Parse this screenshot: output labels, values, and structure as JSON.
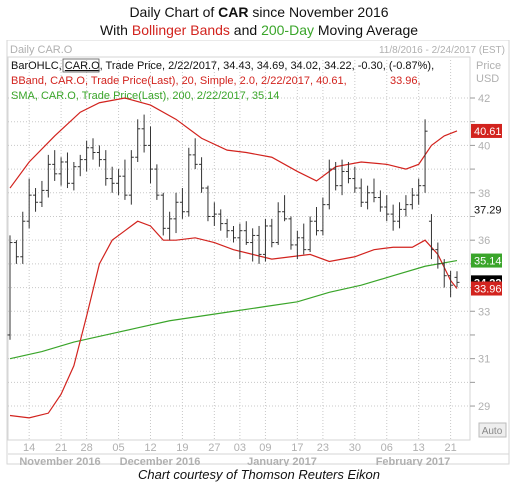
{
  "header": {
    "line1_prefix": "Daily Chart of ",
    "line1_ticker": "CAR",
    "line1_suffix": " since November 2016",
    "line2_prefix": "With ",
    "line2_bb": "Bollinger Bands",
    "line2_and": " and ",
    "line2_sma": "200-Day",
    "line2_suffix": " Moving Average"
  },
  "footer": {
    "credit": "Chart courtesy of Thomson Reuters Eikon"
  },
  "chart_data": {
    "type": "ohlc",
    "title": "Daily CAR.O",
    "date_range": "11/8/2016 - 2/24/2017 (EST)",
    "currency_label": "Price",
    "currency": "USD",
    "ylim": [
      28.2,
      43.0
    ],
    "y_ticks": [
      29,
      30,
      31,
      32,
      33,
      34,
      35,
      36,
      37,
      38,
      39,
      40,
      41,
      42
    ],
    "y_tick_labels": [
      "29",
      "31",
      "33",
      "36",
      "38",
      "40",
      "42"
    ],
    "y_tick_label_values": [
      29,
      31,
      33,
      36,
      38,
      40,
      42
    ],
    "x_days": [
      "14",
      "21",
      "28",
      "05",
      "12",
      "19",
      "27",
      "03",
      "09",
      "17",
      "23",
      "30",
      "06",
      "13",
      "21"
    ],
    "x_months": [
      "November 2016",
      "December 2016",
      "January 2017",
      "February 2017"
    ],
    "auto_label": "Auto",
    "legend": {
      "ohlc": {
        "prefix": "BarOHLC, ",
        "ric": "CAR.O",
        "text": ", Trade Price, 2/22/2017, 34.43, 34.69, 34.02, 34.22, -0.30, (-0.87%),",
        "color": "#111111"
      },
      "bband": {
        "text": "BBand, CAR.O, Trade Price(Last),  20, Simple, 2.0, 2/22/2017, 40.61,",
        "value2": "33.96,",
        "color": "#d2231e"
      },
      "sma": {
        "text": "SMA, CAR.O, Trade Price(Last),  200, 2/22/2017, 35.14",
        "color": "#3aa52a"
      }
    },
    "price_tags": [
      {
        "label": "40.61",
        "value": 40.61,
        "bg": "#d2231e",
        "fg": "#ffffff",
        "bold": false
      },
      {
        "label": "37.29",
        "value": 37.29,
        "bg": "none",
        "fg": "#111111",
        "bold": false
      },
      {
        "label": "35.14",
        "value": 35.14,
        "bg": "#3aa52a",
        "fg": "#ffffff",
        "bold": false
      },
      {
        "label": "34.22",
        "value": 34.22,
        "bg": "#000000",
        "fg": "#ffffff",
        "bold": true
      },
      {
        "label": "33.96",
        "value": 33.96,
        "bg": "#d2231e",
        "fg": "#ffffff",
        "bold": false
      }
    ],
    "dates": [
      "11/9",
      "11/10",
      "11/11",
      "11/14",
      "11/15",
      "11/16",
      "11/17",
      "11/18",
      "11/21",
      "11/22",
      "11/23",
      "11/25",
      "11/28",
      "11/29",
      "11/30",
      "12/1",
      "12/2",
      "12/5",
      "12/6",
      "12/7",
      "12/8",
      "12/9",
      "12/12",
      "12/13",
      "12/14",
      "12/15",
      "12/16",
      "12/19",
      "12/20",
      "12/21",
      "12/22",
      "12/23",
      "12/27",
      "12/28",
      "12/29",
      "12/30",
      "1/3",
      "1/4",
      "1/5",
      "1/6",
      "1/9",
      "1/10",
      "1/11",
      "1/12",
      "1/13",
      "1/17",
      "1/18",
      "1/19",
      "1/20",
      "1/23",
      "1/24",
      "1/25",
      "1/26",
      "1/27",
      "1/30",
      "1/31",
      "2/1",
      "2/2",
      "2/3",
      "2/6",
      "2/7",
      "2/8",
      "2/9",
      "2/10",
      "2/13",
      "2/14",
      "2/15",
      "2/16",
      "2/17",
      "2/21",
      "2/22"
    ],
    "ohlc": [
      [
        32.0,
        36.2,
        31.8,
        35.9
      ],
      [
        35.9,
        36.0,
        35.0,
        35.3
      ],
      [
        35.3,
        37.2,
        35.0,
        36.8
      ],
      [
        36.8,
        38.6,
        36.5,
        37.9
      ],
      [
        37.9,
        38.2,
        37.2,
        37.6
      ],
      [
        37.6,
        38.5,
        37.4,
        38.1
      ],
      [
        38.1,
        39.6,
        37.8,
        39.2
      ],
      [
        39.2,
        39.8,
        38.5,
        38.8
      ],
      [
        38.8,
        39.5,
        38.3,
        39.3
      ],
      [
        39.3,
        39.7,
        38.2,
        38.4
      ],
      [
        38.4,
        39.3,
        38.1,
        39.1
      ],
      [
        39.1,
        39.6,
        38.7,
        39.4
      ],
      [
        39.4,
        40.2,
        38.9,
        39.9
      ],
      [
        39.9,
        40.3,
        39.4,
        39.7
      ],
      [
        39.7,
        40.0,
        39.1,
        39.4
      ],
      [
        39.4,
        39.8,
        38.3,
        38.6
      ],
      [
        38.6,
        39.1,
        38.0,
        38.4
      ],
      [
        38.4,
        39.0,
        37.9,
        38.7
      ],
      [
        38.7,
        39.4,
        37.7,
        37.9
      ],
      [
        37.9,
        39.8,
        37.5,
        39.5
      ],
      [
        39.5,
        41.1,
        39.3,
        40.7
      ],
      [
        40.7,
        41.3,
        39.7,
        40.0
      ],
      [
        40.0,
        40.8,
        38.4,
        39.0
      ],
      [
        39.0,
        39.2,
        37.7,
        37.9
      ],
      [
        37.9,
        38.0,
        36.2,
        36.5
      ],
      [
        36.5,
        37.2,
        36.0,
        36.9
      ],
      [
        36.9,
        38.0,
        36.3,
        37.6
      ],
      [
        37.6,
        38.2,
        36.9,
        37.2
      ],
      [
        37.2,
        39.9,
        37.0,
        39.6
      ],
      [
        39.6,
        40.3,
        39.0,
        39.2
      ],
      [
        39.2,
        39.5,
        38.0,
        38.2
      ],
      [
        38.2,
        38.3,
        36.8,
        37.0
      ],
      [
        37.0,
        37.6,
        36.6,
        37.1
      ],
      [
        37.1,
        37.3,
        36.4,
        36.7
      ],
      [
        36.7,
        36.9,
        36.1,
        36.4
      ],
      [
        36.4,
        36.6,
        35.9,
        36.1
      ],
      [
        36.1,
        36.7,
        35.2,
        36.4
      ],
      [
        36.4,
        36.8,
        35.8,
        35.9
      ],
      [
        35.9,
        36.5,
        35.1,
        36.2
      ],
      [
        36.2,
        36.6,
        35.0,
        35.4
      ],
      [
        35.4,
        36.9,
        35.1,
        36.6
      ],
      [
        36.6,
        36.9,
        35.7,
        35.9
      ],
      [
        35.9,
        37.6,
        35.8,
        37.2
      ],
      [
        37.2,
        37.9,
        36.8,
        36.9
      ],
      [
        36.9,
        37.0,
        35.6,
        35.8
      ],
      [
        35.8,
        36.4,
        35.2,
        36.1
      ],
      [
        36.1,
        36.7,
        35.4,
        35.6
      ],
      [
        35.6,
        37.0,
        35.5,
        36.8
      ],
      [
        36.8,
        37.4,
        36.2,
        36.4
      ],
      [
        36.4,
        37.8,
        36.2,
        37.5
      ],
      [
        37.5,
        39.4,
        37.3,
        39.0
      ],
      [
        39.0,
        39.3,
        38.1,
        38.3
      ],
      [
        38.3,
        39.4,
        37.9,
        38.9
      ],
      [
        38.9,
        39.3,
        38.4,
        38.6
      ],
      [
        38.6,
        39.1,
        38.0,
        38.2
      ],
      [
        38.2,
        38.6,
        37.4,
        37.6
      ],
      [
        37.6,
        38.3,
        37.3,
        38.0
      ],
      [
        38.0,
        38.6,
        37.6,
        37.8
      ],
      [
        37.8,
        38.1,
        37.2,
        37.4
      ],
      [
        37.4,
        37.9,
        36.8,
        37.1
      ],
      [
        37.1,
        37.5,
        36.4,
        36.8
      ],
      [
        36.8,
        37.6,
        36.5,
        37.3
      ],
      [
        37.3,
        37.9,
        37.0,
        37.5
      ],
      [
        37.5,
        38.2,
        37.3,
        37.9
      ],
      [
        37.9,
        38.6,
        37.5,
        38.3
      ],
      [
        38.3,
        41.1,
        38.0,
        40.6
      ],
      [
        36.8,
        37.1,
        35.2,
        35.6
      ],
      [
        35.6,
        35.9,
        34.8,
        35.0
      ],
      [
        35.0,
        35.2,
        34.0,
        34.5
      ],
      [
        34.5,
        34.7,
        33.6,
        34.1
      ],
      [
        34.43,
        34.69,
        34.02,
        34.22
      ]
    ],
    "bb_upper": [
      [
        1,
        38.2
      ],
      [
        4,
        39.3
      ],
      [
        8,
        40.4
      ],
      [
        12,
        41.4
      ],
      [
        15,
        41.8
      ],
      [
        19,
        42.0
      ],
      [
        23,
        41.7
      ],
      [
        27,
        41.1
      ],
      [
        31,
        40.3
      ],
      [
        35,
        39.8
      ],
      [
        38,
        39.7
      ],
      [
        42,
        39.5
      ],
      [
        46,
        38.9
      ],
      [
        49,
        38.5
      ],
      [
        52,
        39.1
      ],
      [
        56,
        39.3
      ],
      [
        60,
        39.2
      ],
      [
        63,
        39.0
      ],
      [
        65,
        39.2
      ],
      [
        67,
        40.0
      ],
      [
        69,
        40.4
      ],
      [
        71,
        40.61
      ]
    ],
    "bb_lower": [
      [
        1,
        28.6
      ],
      [
        4,
        28.5
      ],
      [
        7,
        28.7
      ],
      [
        9,
        29.5
      ],
      [
        11,
        30.7
      ],
      [
        13,
        32.8
      ],
      [
        15,
        35.0
      ],
      [
        17,
        36.0
      ],
      [
        19,
        36.4
      ],
      [
        21,
        36.8
      ],
      [
        23,
        36.6
      ],
      [
        25,
        36.0
      ],
      [
        27,
        36.0
      ],
      [
        30,
        36.1
      ],
      [
        33,
        35.9
      ],
      [
        36,
        35.6
      ],
      [
        39,
        35.4
      ],
      [
        42,
        35.2
      ],
      [
        45,
        35.3
      ],
      [
        48,
        35.4
      ],
      [
        51,
        35.1
      ],
      [
        55,
        35.3
      ],
      [
        58,
        35.6
      ],
      [
        61,
        35.7
      ],
      [
        64,
        35.7
      ],
      [
        66,
        36.0
      ],
      [
        68,
        35.4
      ],
      [
        70,
        34.3
      ],
      [
        71,
        33.96
      ]
    ],
    "sma200": [
      [
        1,
        31.0
      ],
      [
        6,
        31.3
      ],
      [
        11,
        31.7
      ],
      [
        16,
        32.0
      ],
      [
        21,
        32.3
      ],
      [
        26,
        32.6
      ],
      [
        31,
        32.8
      ],
      [
        36,
        33.0
      ],
      [
        41,
        33.2
      ],
      [
        46,
        33.4
      ],
      [
        51,
        33.8
      ],
      [
        56,
        34.1
      ],
      [
        61,
        34.5
      ],
      [
        66,
        34.9
      ],
      [
        71,
        35.14
      ]
    ],
    "colors": {
      "bars": "#333333",
      "bb": "#d2231e",
      "sma": "#3aa52a",
      "grid": "#c8c8c8",
      "frame": "#d6d6d6",
      "labels": "#b0b0b0"
    }
  }
}
